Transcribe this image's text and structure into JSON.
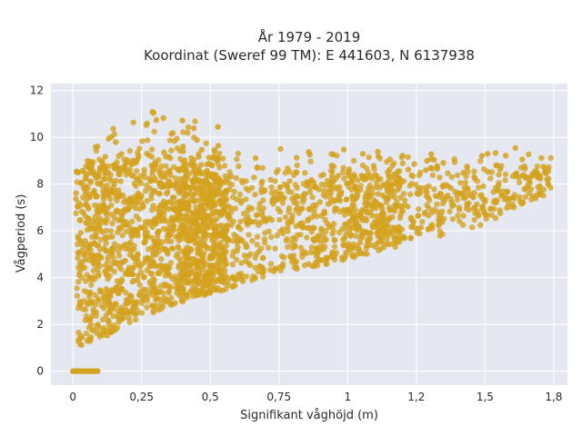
{
  "chart_data": {
    "type": "scatter",
    "title": "År 1979 - 2019",
    "subtitle": "Koordinat (Sweref 99 TM): E 441603, N 6137938",
    "xlabel": "Signifikant våghöjd (m)",
    "ylabel": "Vågperiod (s)",
    "xlim": [
      -0.08,
      1.8
    ],
    "ylim": [
      -0.6,
      12.3
    ],
    "x_ticks": [
      0,
      0.25,
      0.5,
      0.75,
      1,
      1.25,
      1.5,
      1.75
    ],
    "x_tick_labels": [
      "0",
      "0,25",
      "0,5",
      "0,75",
      "1",
      "1,2",
      "1,5",
      "1,8"
    ],
    "y_ticks": [
      0,
      2,
      4,
      6,
      8,
      10,
      12
    ],
    "y_tick_labels": [
      "0",
      "2",
      "4",
      "6",
      "8",
      "10",
      "12"
    ],
    "grid": true,
    "legend": "none",
    "marker_color": "#D4A21E",
    "plot_background": "#E5E8F0",
    "grid_color": "#FFFFFF",
    "envelope": {
      "description_points": "approximate data envelope read from the plot",
      "upper": [
        [
          0.02,
          8.6
        ],
        [
          0.1,
          10.2
        ],
        [
          0.2,
          11.3
        ],
        [
          0.3,
          11.5
        ],
        [
          0.5,
          10.6
        ],
        [
          0.75,
          9.9
        ],
        [
          1.0,
          9.5
        ],
        [
          1.25,
          9.4
        ],
        [
          1.5,
          9.3
        ],
        [
          1.72,
          9.8
        ]
      ],
      "core_upper": [
        [
          0.05,
          8.5
        ],
        [
          0.25,
          8.8
        ],
        [
          0.5,
          8.4
        ],
        [
          0.75,
          8.2
        ],
        [
          1.0,
          8.2
        ],
        [
          1.25,
          8.3
        ],
        [
          1.5,
          8.5
        ],
        [
          1.73,
          8.8
        ]
      ],
      "lower": [
        [
          0.02,
          1.0
        ],
        [
          0.1,
          1.3
        ],
        [
          0.25,
          2.3
        ],
        [
          0.5,
          3.3
        ],
        [
          0.75,
          4.1
        ],
        [
          1.0,
          4.8
        ],
        [
          1.25,
          5.5
        ],
        [
          1.5,
          6.3
        ],
        [
          1.73,
          7.6
        ]
      ]
    },
    "zero_cluster": {
      "x_range": [
        0.0,
        0.09
      ],
      "y": 0
    }
  }
}
